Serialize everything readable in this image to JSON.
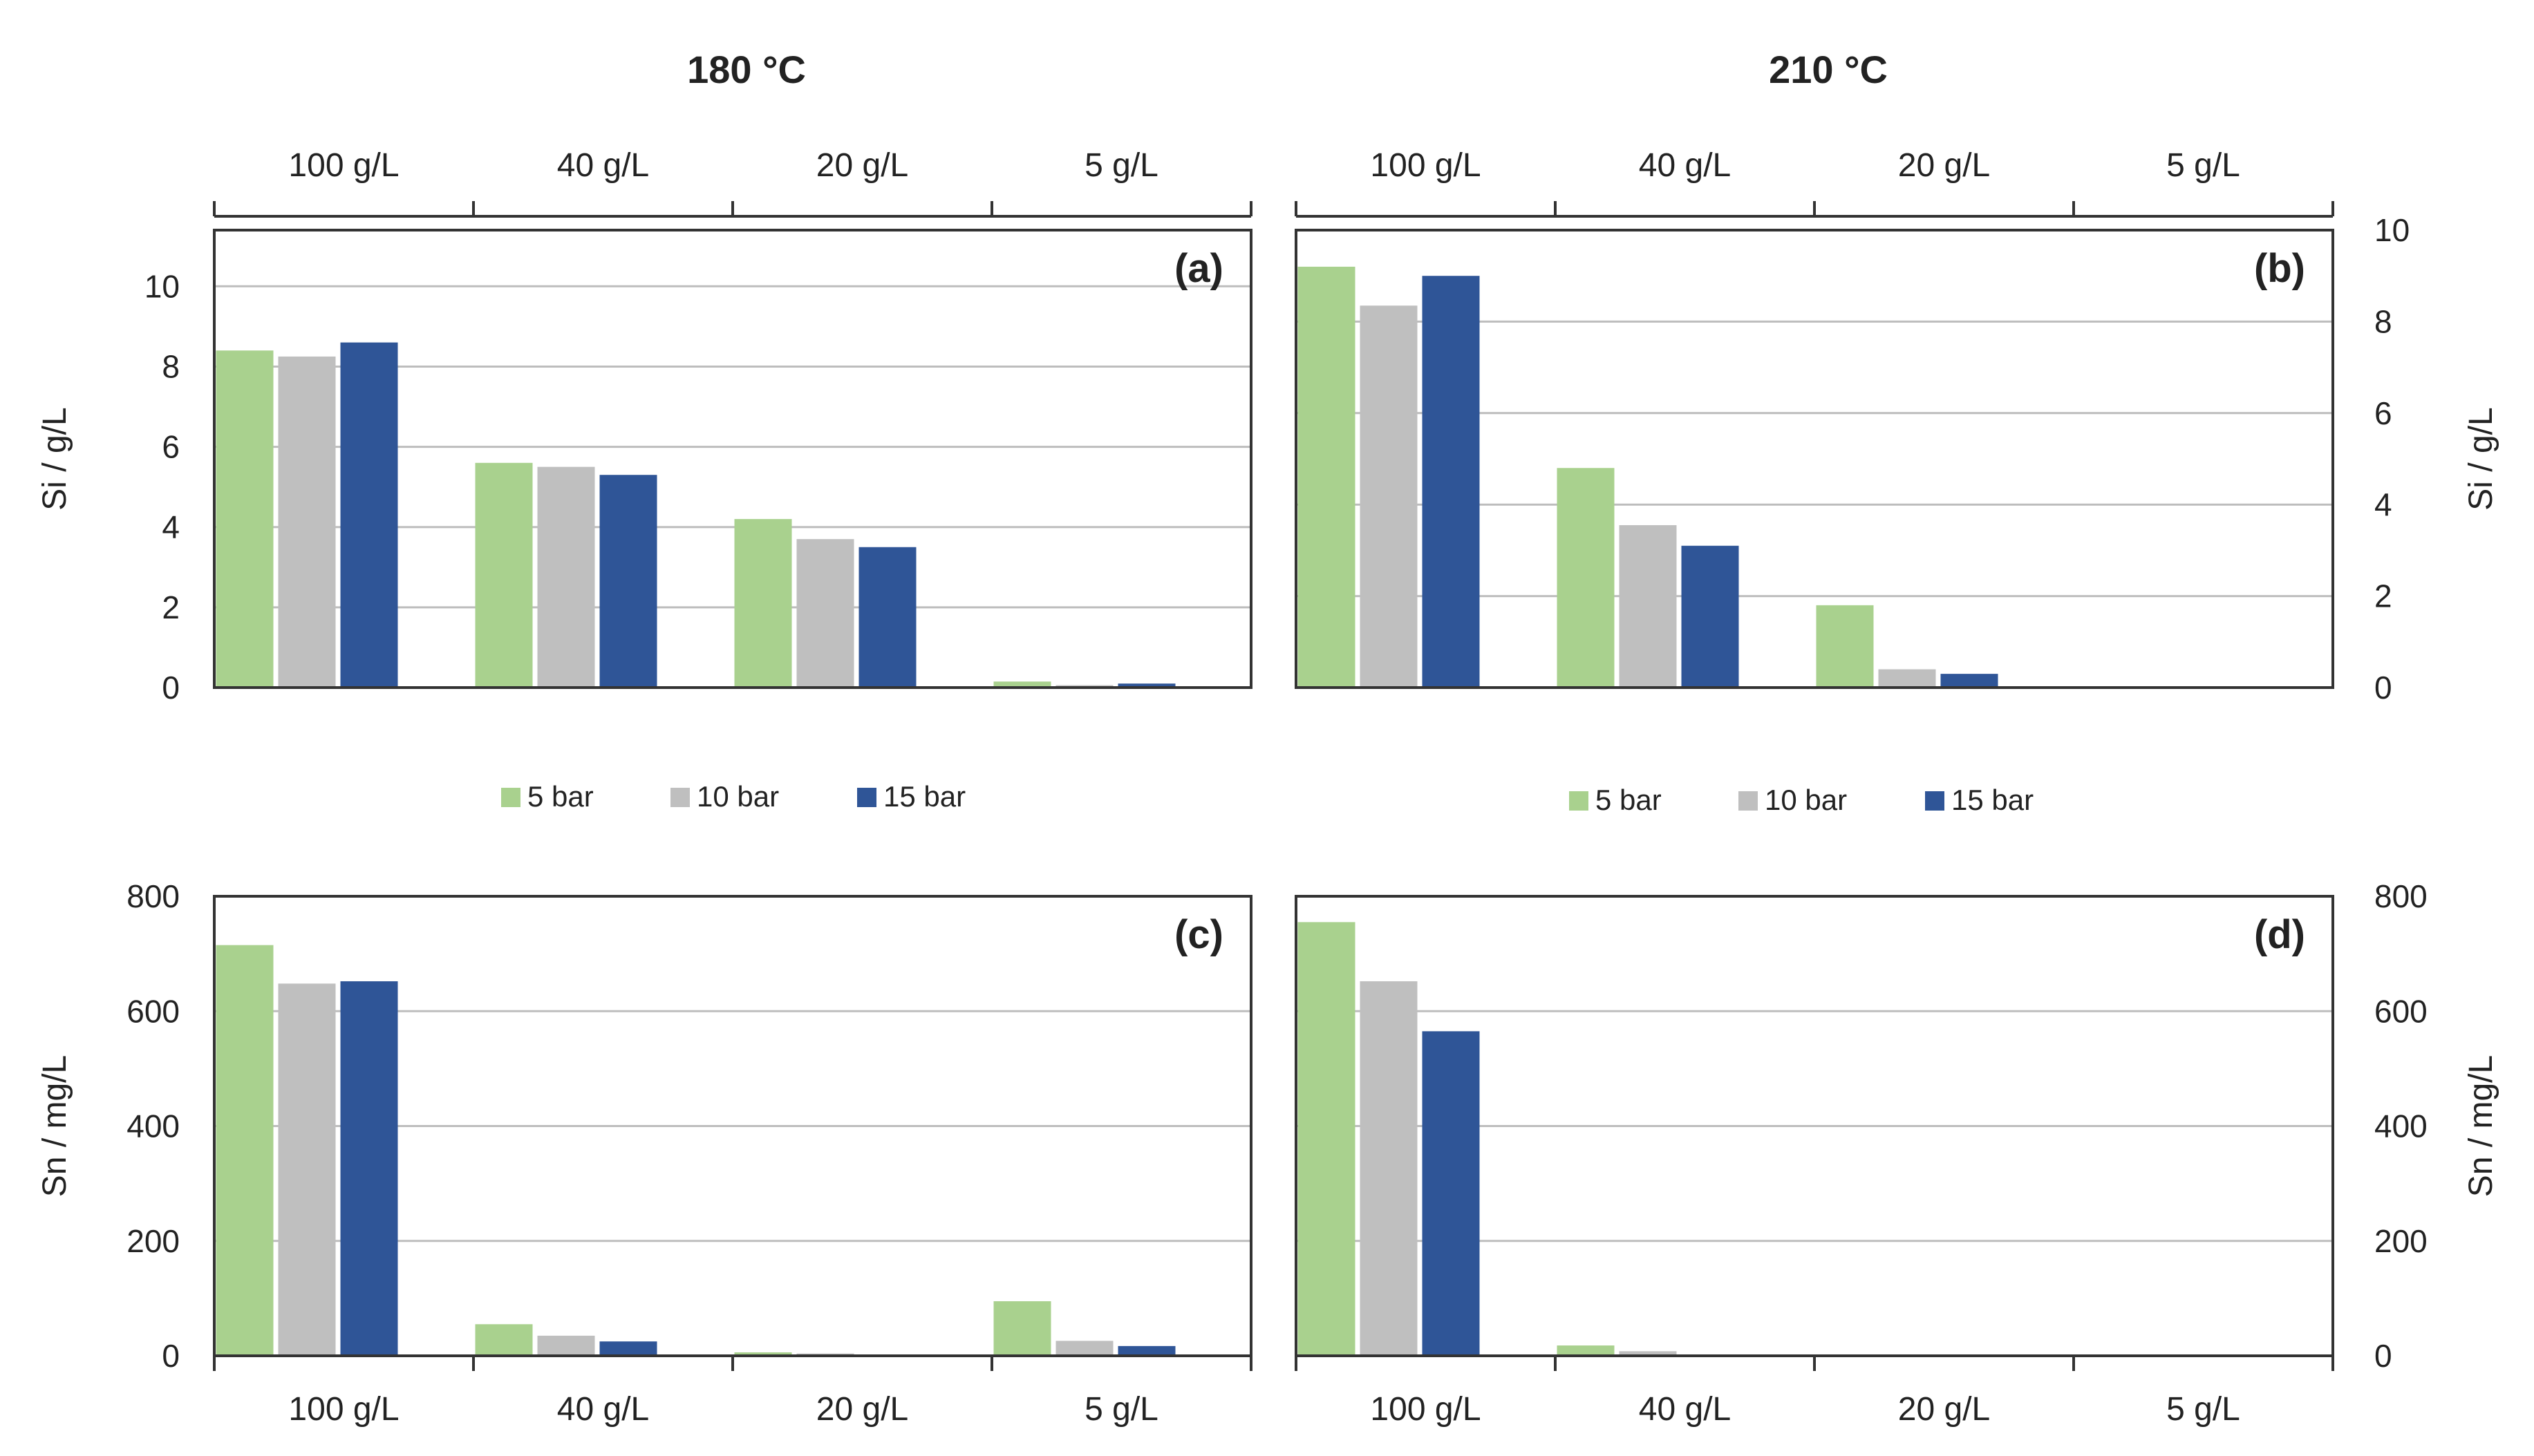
{
  "titles": {
    "left": "180 °C",
    "right": "210 °C"
  },
  "legend": [
    {
      "label": "5 bar",
      "color": "#A9D18E"
    },
    {
      "label": "10 bar",
      "color": "#BFBFBF"
    },
    {
      "label": "15 bar",
      "color": "#2F5597"
    }
  ],
  "chart_data": [
    {
      "id": "a",
      "type": "bar",
      "tag": "(a)",
      "title": "180 °C",
      "categories": [
        "100 g/L",
        "40 g/L",
        "20 g/L",
        "5 g/L"
      ],
      "ylabel": "Si / g/L",
      "ylim": [
        0,
        11.4
      ],
      "yticks": [
        0,
        2,
        4,
        6,
        8,
        10
      ],
      "series": [
        {
          "name": "5 bar",
          "values": [
            8.4,
            5.6,
            4.2,
            0.15
          ]
        },
        {
          "name": "10 bar",
          "values": [
            8.25,
            5.5,
            3.7,
            0.06
          ]
        },
        {
          "name": "15 bar",
          "values": [
            8.6,
            5.3,
            3.5,
            0.1
          ]
        }
      ]
    },
    {
      "id": "b",
      "type": "bar",
      "tag": "(b)",
      "title": "210 °C",
      "categories": [
        "100 g/L",
        "40 g/L",
        "20 g/L",
        "5 g/L"
      ],
      "ylabel": "Si / g/L",
      "ylim": [
        0,
        10
      ],
      "yticks": [
        0,
        2,
        4,
        6,
        8,
        10
      ],
      "series": [
        {
          "name": "5 bar",
          "values": [
            9.2,
            4.8,
            1.8,
            0
          ]
        },
        {
          "name": "10 bar",
          "values": [
            8.35,
            3.55,
            0.4,
            0
          ]
        },
        {
          "name": "15 bar",
          "values": [
            9.0,
            3.1,
            0.3,
            0
          ]
        }
      ]
    },
    {
      "id": "c",
      "type": "bar",
      "tag": "(c)",
      "title": "180 °C",
      "categories": [
        "100 g/L",
        "40 g/L",
        "20 g/L",
        "5 g/L"
      ],
      "ylabel": "Sn / mg/L",
      "ylim": [
        0,
        800
      ],
      "yticks": [
        0,
        200,
        400,
        600,
        800
      ],
      "series": [
        {
          "name": "5 bar",
          "values": [
            715,
            55,
            6,
            95
          ]
        },
        {
          "name": "10 bar",
          "values": [
            648,
            35,
            4,
            26
          ]
        },
        {
          "name": "15 bar",
          "values": [
            652,
            25,
            1,
            17
          ]
        }
      ]
    },
    {
      "id": "d",
      "type": "bar",
      "tag": "(d)",
      "title": "210 °C",
      "categories": [
        "100 g/L",
        "40 g/L",
        "20 g/L",
        "5 g/L"
      ],
      "ylabel": "Sn / mg/L",
      "ylim": [
        0,
        800
      ],
      "yticks": [
        0,
        200,
        400,
        600,
        800
      ],
      "series": [
        {
          "name": "5 bar",
          "values": [
            755,
            18,
            0,
            0
          ]
        },
        {
          "name": "10 bar",
          "values": [
            652,
            8,
            0,
            0
          ]
        },
        {
          "name": "15 bar",
          "values": [
            565,
            0,
            0,
            0
          ]
        }
      ]
    }
  ]
}
